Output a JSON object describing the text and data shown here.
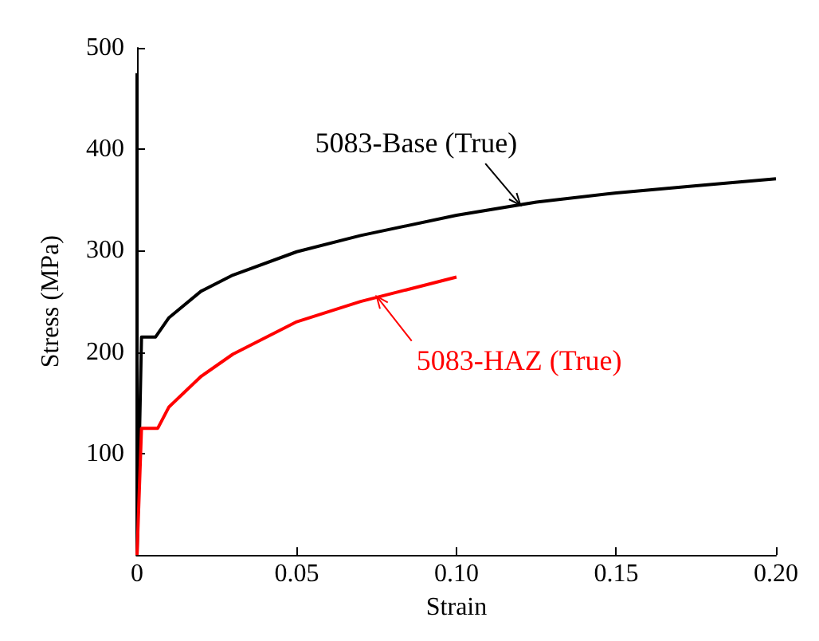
{
  "chart_data": {
    "type": "line",
    "xlabel": "Strain",
    "ylabel": "Stress (MPa)",
    "xlim": [
      0,
      0.2
    ],
    "xticks": [
      0,
      0.05,
      {
        "value": 0.1,
        "label": "0.10"
      },
      0.15,
      {
        "value": 0.2,
        "label": "0.20"
      }
    ],
    "ylim": [
      0,
      500
    ],
    "yticks": [
      100,
      200,
      300,
      400,
      500
    ],
    "grid": false,
    "marker": "none",
    "line_style": "solid",
    "series": [
      {
        "color": "#000000",
        "x": [
          0,
          0,
          0.0014,
          0.0058,
          0.01,
          0.02,
          0.03,
          0.05,
          0.07,
          0.1,
          0.125,
          0.15,
          0.175,
          0.2
        ],
        "values": [
          475,
          0,
          215,
          215,
          234,
          260,
          276,
          299,
          315,
          335,
          348,
          357,
          364,
          371
        ]
      },
      {
        "color": "#ff0000",
        "x": [
          0,
          0.0014,
          0.0065,
          0.01,
          0.02,
          0.03,
          0.05,
          0.07,
          0.1
        ],
        "values": [
          0,
          125,
          125,
          146,
          176,
          198,
          230,
          250,
          274
        ]
      }
    ],
    "annotations": [
      {
        "text": "5083-Base (True)",
        "x": 0.12,
        "y": 345
      },
      {
        "text": "5083-HAZ (True)",
        "x": 0.075,
        "y": 255
      }
    ]
  }
}
